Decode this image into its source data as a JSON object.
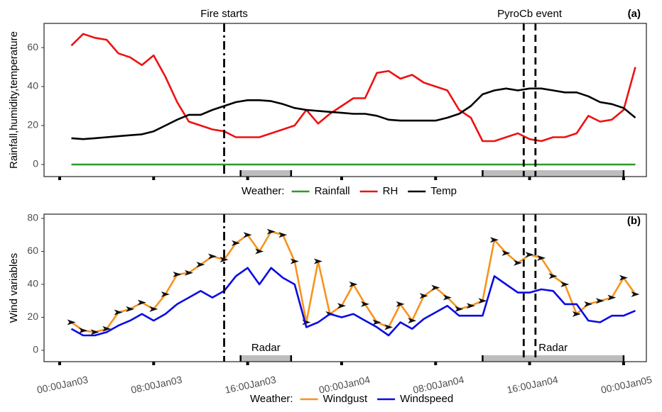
{
  "chart_data": [
    {
      "type": "line",
      "panel_label": "(a)",
      "y_label": "Rainfall,humidity,temperature",
      "legend_title": "Weather:",
      "x": [
        1,
        2,
        3,
        4,
        5,
        6,
        7,
        8,
        9,
        10,
        11,
        12,
        13,
        14,
        15,
        16,
        17,
        18,
        19,
        20,
        21,
        22,
        23,
        24,
        25,
        26,
        27,
        28,
        29,
        30,
        31,
        32,
        33,
        34,
        35,
        36,
        37,
        38,
        39,
        40,
        41,
        42,
        43,
        44,
        45,
        46,
        47,
        48,
        49
      ],
      "series": [
        {
          "name": "Rainfall",
          "color": "#2e9a2e",
          "values": [
            0,
            0,
            0,
            0,
            0,
            0,
            0,
            0,
            0,
            0,
            0,
            0,
            0,
            0,
            0,
            0,
            0,
            0,
            0,
            0,
            0,
            0,
            0,
            0,
            0,
            0,
            0,
            0,
            0,
            0,
            0,
            0,
            0,
            0,
            0,
            0,
            0,
            0,
            0,
            0,
            0,
            0,
            0,
            0,
            0,
            0,
            0,
            0,
            0
          ]
        },
        {
          "name": "RH",
          "color": "#ee1111",
          "values": [
            61,
            67,
            65,
            64,
            57,
            55,
            51,
            56,
            45,
            32,
            22,
            20,
            18,
            17,
            14,
            14,
            14,
            16,
            18,
            20,
            28,
            21,
            26,
            30,
            34,
            34,
            47,
            48,
            44,
            46,
            42,
            40,
            38,
            28,
            24,
            12,
            12,
            14,
            16,
            13,
            12,
            14,
            14,
            16,
            25,
            22,
            23,
            28,
            50
          ]
        },
        {
          "name": "Temp",
          "color": "#000000",
          "values": [
            13.5,
            13,
            13.5,
            14,
            14.5,
            15,
            15.5,
            17,
            20,
            23,
            25.5,
            25.5,
            28,
            30,
            32,
            33,
            33,
            32.5,
            31,
            29,
            28,
            27.5,
            27,
            26.5,
            26,
            26,
            25,
            23,
            22.5,
            22.5,
            22.5,
            22.5,
            24,
            26,
            30,
            36,
            38,
            39,
            38,
            39,
            39,
            38,
            37,
            37,
            35,
            32,
            31,
            29,
            24
          ]
        }
      ],
      "xlim": [
        -1.33,
        49.94
      ],
      "xticks": [
        0,
        8,
        16,
        24,
        32,
        40,
        48
      ],
      "ylim": [
        -6.2,
        72.4
      ],
      "yticks": [
        0,
        20,
        40,
        60
      ],
      "vlines": [
        {
          "x": 14,
          "style": "dashdot"
        },
        {
          "x": 39.5,
          "style": "dashed"
        },
        {
          "x": 40.5,
          "style": "dashed"
        }
      ],
      "annotations": [
        {
          "text": "Fire starts",
          "x": 14
        },
        {
          "text": "PyroCb event",
          "x": 40
        }
      ],
      "shaded": [
        {
          "x": [
            15.4,
            19.7
          ]
        },
        {
          "x": [
            36,
            48
          ]
        }
      ]
    },
    {
      "type": "line",
      "panel_label": "(b)",
      "y_label": "Wind variables",
      "legend_title": "Weather:",
      "x": [
        1,
        2,
        3,
        4,
        5,
        6,
        7,
        8,
        9,
        10,
        11,
        12,
        13,
        14,
        15,
        16,
        17,
        18,
        19,
        20,
        21,
        22,
        23,
        24,
        25,
        26,
        27,
        28,
        29,
        30,
        31,
        32,
        33,
        34,
        35,
        36,
        37,
        38,
        39,
        40,
        41,
        42,
        43,
        44,
        45,
        46,
        47,
        48,
        49
      ],
      "series": [
        {
          "name": "Windgust",
          "color": "#f7931e",
          "markers": true,
          "values": [
            17,
            12,
            11,
            13,
            23,
            25,
            29,
            25,
            34,
            46,
            47,
            52,
            57,
            55,
            65,
            70,
            60,
            72,
            70,
            54,
            17,
            54,
            22,
            27,
            40,
            28,
            17,
            14,
            28,
            18,
            33,
            38,
            32,
            25,
            27,
            30,
            67,
            59,
            53,
            58,
            56,
            45,
            40,
            22,
            28,
            30,
            32,
            44,
            34
          ]
        },
        {
          "name": "Windspeed",
          "color": "#0a0ae6",
          "values": [
            13,
            9,
            9,
            11,
            15,
            18,
            22,
            18,
            22,
            28,
            32,
            36,
            32,
            36,
            45,
            50,
            40,
            50,
            44,
            40,
            14,
            17,
            22,
            20,
            22,
            18,
            14,
            9,
            17,
            13,
            19,
            23,
            27,
            21,
            21,
            21,
            45,
            40,
            35,
            35,
            37,
            36,
            28,
            28,
            18,
            17,
            21,
            21,
            24
          ]
        }
      ],
      "xlim": [
        -1.33,
        49.94
      ],
      "xticks": [
        {
          "value": 0,
          "label": "00:00Jan03"
        },
        {
          "value": 8,
          "label": "08:00Jan03"
        },
        {
          "value": 16,
          "label": "16:00Jan03"
        },
        {
          "value": 24,
          "label": "00:00Jan04"
        },
        {
          "value": 32,
          "label": "08:00Jan04"
        },
        {
          "value": 40,
          "label": "16:00Jan04"
        },
        {
          "value": 48,
          "label": "00:00Jan05"
        }
      ],
      "ylim": [
        -6.9,
        82.6
      ],
      "yticks": [
        0,
        20,
        40,
        60,
        80
      ],
      "vlines": [
        {
          "x": 14,
          "style": "dashdot"
        },
        {
          "x": 39.5,
          "style": "dashed"
        },
        {
          "x": 40.5,
          "style": "dashed"
        }
      ],
      "shaded": [
        {
          "x": [
            15.4,
            19.7
          ],
          "label": "Radar"
        },
        {
          "x": [
            36,
            48
          ],
          "label": "Radar"
        }
      ]
    }
  ]
}
